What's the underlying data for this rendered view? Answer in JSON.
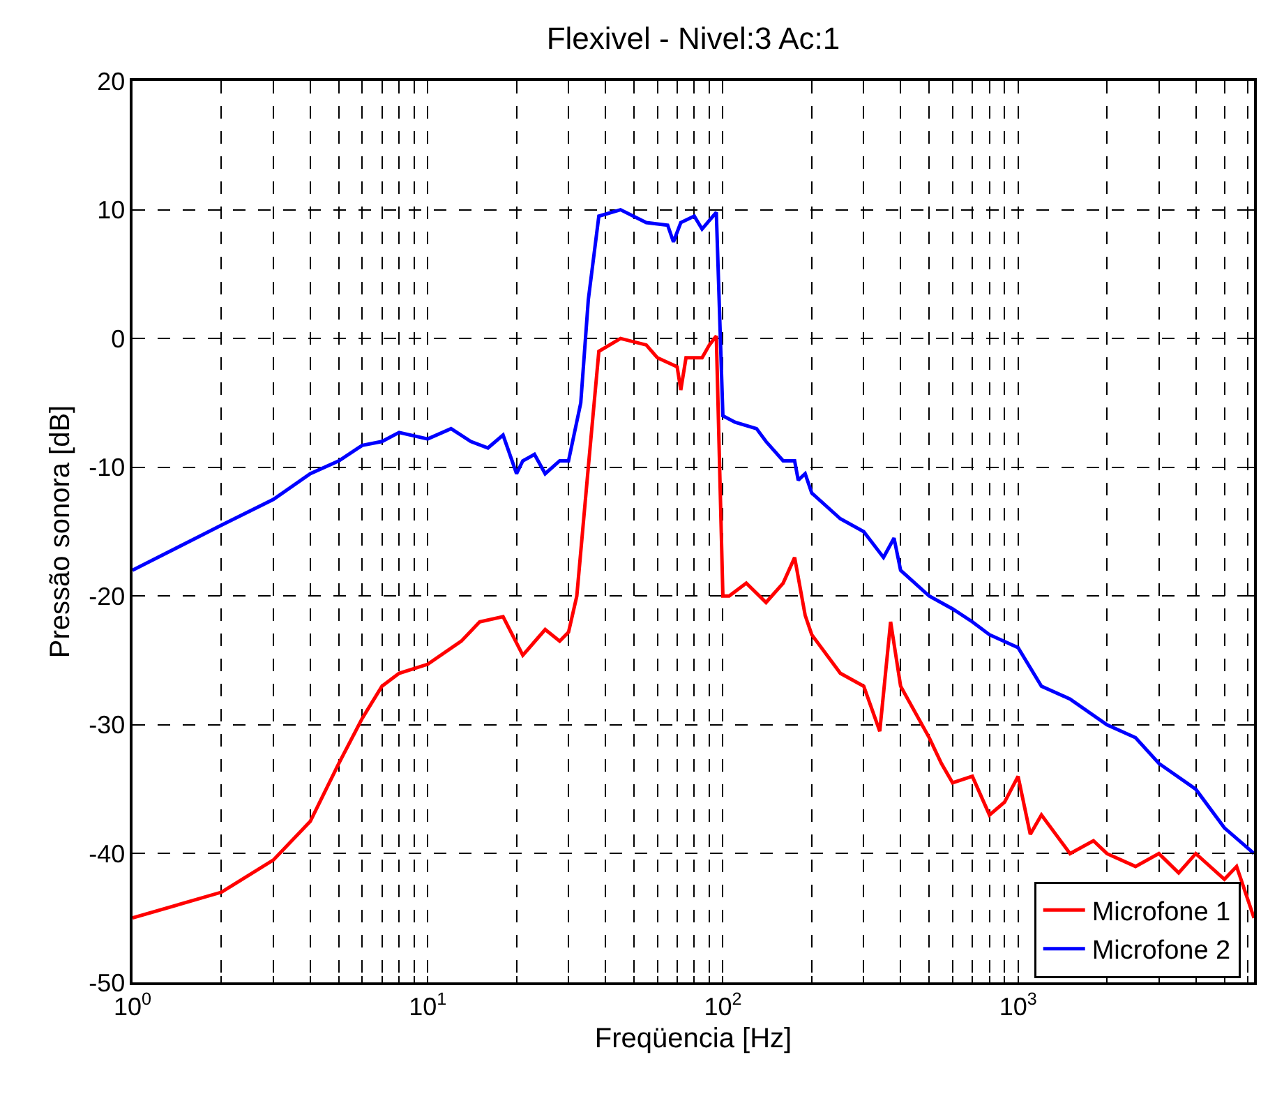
{
  "chart_data": {
    "type": "line",
    "title": "Flexivel - Nivel:3 Ac:1",
    "xlabel": "Freqüencia [Hz]",
    "ylabel": "Pressão sonora [dB]",
    "log": "x",
    "grid": true,
    "legend": "bottom right",
    "line_style": "solid",
    "marker": "none",
    "xlim": [
      1,
      6300
    ],
    "xticks": [
      {
        "value": 1,
        "label": "10$^{0}$"
      },
      {
        "value": 2,
        "label": null
      },
      {
        "value": 3,
        "label": null
      },
      {
        "value": 4,
        "label": null
      },
      {
        "value": 5,
        "label": null
      },
      {
        "value": 6,
        "label": null
      },
      {
        "value": 7,
        "label": null
      },
      {
        "value": 8,
        "label": null
      },
      {
        "value": 9,
        "label": null
      },
      {
        "value": 10,
        "label": "10$^{1}$"
      },
      {
        "value": 20,
        "label": null
      },
      {
        "value": 30,
        "label": null
      },
      {
        "value": 40,
        "label": null
      },
      {
        "value": 50,
        "label": null
      },
      {
        "value": 60,
        "label": null
      },
      {
        "value": 70,
        "label": null
      },
      {
        "value": 80,
        "label": null
      },
      {
        "value": 90,
        "label": null
      },
      {
        "value": 100,
        "label": "10$^{2}$"
      },
      {
        "value": 200,
        "label": null
      },
      {
        "value": 300,
        "label": null
      },
      {
        "value": 400,
        "label": null
      },
      {
        "value": 500,
        "label": null
      },
      {
        "value": 600,
        "label": null
      },
      {
        "value": 700,
        "label": null
      },
      {
        "value": 800,
        "label": null
      },
      {
        "value": 900,
        "label": null
      },
      {
        "value": 1000,
        "label": "10$^{3}$"
      },
      {
        "value": 2000,
        "label": null
      },
      {
        "value": 3000,
        "label": null
      },
      {
        "value": 4000,
        "label": null
      },
      {
        "value": 5000,
        "label": null
      },
      {
        "value": 6000,
        "label": null
      }
    ],
    "ylim": [
      -50,
      20
    ],
    "yticks": [
      -50,
      -40,
      -30,
      -20,
      -10,
      0,
      10,
      20
    ],
    "series": [
      {
        "name": "Microfone 1",
        "color": "#ff0000",
        "x": [
          1,
          2,
          3,
          4,
          5,
          6,
          7,
          8,
          10,
          13,
          15,
          18,
          21,
          25,
          28,
          30,
          32,
          35,
          38,
          45,
          55,
          60,
          70,
          72,
          75,
          85,
          90,
          95,
          100,
          105,
          120,
          140,
          160,
          175,
          190,
          200,
          250,
          300,
          340,
          370,
          400,
          500,
          550,
          600,
          700,
          800,
          900,
          1000,
          1100,
          1200,
          1500,
          1800,
          2000,
          2500,
          3000,
          3500,
          4000,
          5000,
          5500,
          6300
        ],
        "values": [
          -45,
          -43,
          -40.5,
          -37.5,
          -33,
          -29.5,
          -27,
          -26,
          -25.3,
          -23.5,
          -22,
          -21.6,
          -24.6,
          -22.6,
          -23.5,
          -22.8,
          -20,
          -10,
          -1,
          0,
          -0.5,
          -1.5,
          -2.2,
          -4,
          -1.5,
          -1.5,
          -0.5,
          0.2,
          -20,
          -20,
          -19,
          -20.5,
          -19,
          -17,
          -21.5,
          -23,
          -26,
          -27,
          -30.5,
          -22,
          -27,
          -31,
          -33,
          -34.5,
          -34,
          -37,
          -36,
          -34,
          -38.5,
          -37,
          -40,
          -39,
          -40,
          -41,
          -40,
          -41.5,
          -40,
          -42,
          -41,
          -45
        ]
      },
      {
        "name": "Microfone 2",
        "color": "#0000ff",
        "x": [
          1,
          2,
          3,
          4,
          5,
          6,
          7,
          8,
          10,
          12,
          14,
          16,
          18,
          20,
          21,
          23,
          25,
          28,
          30,
          33,
          35,
          38,
          45,
          55,
          65,
          68,
          72,
          80,
          85,
          95,
          100,
          110,
          130,
          140,
          160,
          175,
          180,
          190,
          200,
          250,
          300,
          350,
          380,
          400,
          500,
          600,
          700,
          800,
          1000,
          1200,
          1500,
          2000,
          2500,
          3000,
          4000,
          5000,
          6300
        ],
        "values": [
          -18,
          -14.5,
          -12.5,
          -10.5,
          -9.5,
          -8.3,
          -8,
          -7.3,
          -7.8,
          -7,
          -8,
          -8.5,
          -7.5,
          -10.5,
          -9.5,
          -9,
          -10.5,
          -9.5,
          -9.5,
          -5,
          3,
          9.5,
          10,
          9,
          8.8,
          7.5,
          9,
          9.5,
          8.5,
          9.8,
          -6,
          -6.5,
          -7,
          -8,
          -9.5,
          -9.5,
          -11,
          -10.5,
          -12,
          -14,
          -15,
          -17,
          -15.5,
          -18,
          -20,
          -21,
          -22,
          -23,
          -24,
          -27,
          -28,
          -30,
          -31,
          -33,
          -35,
          -38,
          -40
        ]
      }
    ]
  }
}
